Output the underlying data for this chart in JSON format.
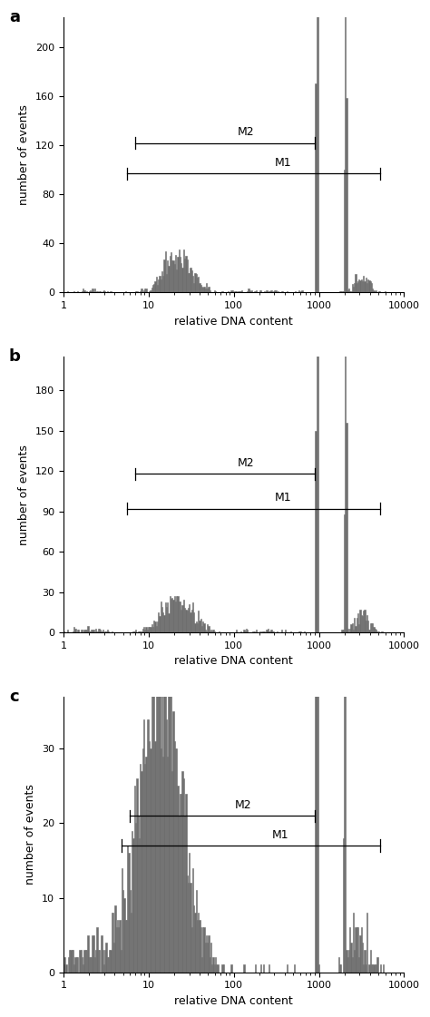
{
  "panels": [
    {
      "label": "a",
      "ylim": [
        0,
        225
      ],
      "yticks": [
        0,
        40,
        80,
        120,
        160,
        200
      ],
      "M2_y": 122,
      "M1_y": 97,
      "M2_x_start_log": 0.845,
      "M2_x_end_log": 2.95,
      "M1_x_start_log": 0.75,
      "M1_x_end_log": 3.72,
      "hist_color": "#6e6e6e",
      "hist_edge": "#6e6e6e"
    },
    {
      "label": "b",
      "ylim": [
        0,
        205
      ],
      "yticks": [
        0,
        30,
        60,
        90,
        120,
        150,
        180
      ],
      "M2_y": 118,
      "M1_y": 92,
      "M2_x_start_log": 0.845,
      "M2_x_end_log": 2.95,
      "M1_x_start_log": 0.75,
      "M1_x_end_log": 3.72,
      "hist_color": "#6e6e6e",
      "hist_edge": "#6e6e6e"
    },
    {
      "label": "c",
      "ylim": [
        0,
        37
      ],
      "yticks": [
        0,
        10,
        20,
        30
      ],
      "M2_y": 21,
      "M1_y": 17,
      "M2_x_start_log": 0.78,
      "M2_x_end_log": 2.95,
      "M1_x_start_log": 0.68,
      "M1_x_end_log": 3.72,
      "hist_color": "#6e6e6e",
      "hist_edge": "#6e6e6e"
    }
  ],
  "xlabel": "relative DNA content",
  "ylabel": "number of events",
  "xlim_log": [
    1,
    10000
  ],
  "n_bins": 300,
  "fig_bg": "#ffffff"
}
